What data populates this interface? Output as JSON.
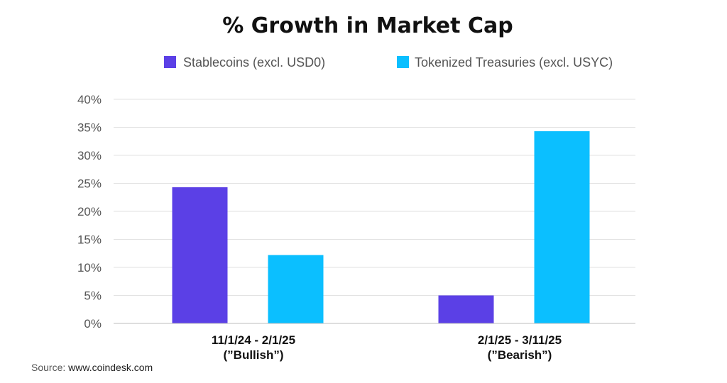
{
  "chart_data": {
    "type": "bar",
    "title": "% Growth in Market Cap",
    "categories": [
      [
        "11/1/24 - 2/1/25",
        "(”Bullish”)"
      ],
      [
        "2/1/25 - 3/11/25",
        "(”Bearish”)"
      ]
    ],
    "series": [
      {
        "name": "Stablecoins (excl. USD0)",
        "color": "#5b40e6",
        "values": [
          24.3,
          5.0
        ]
      },
      {
        "name": "Tokenized Treasuries (excl. USYC)",
        "color": "#0bbfff",
        "values": [
          12.2,
          34.3
        ]
      }
    ],
    "ylim": [
      0,
      40
    ],
    "yticks": [
      0,
      5,
      10,
      15,
      20,
      25,
      30,
      35,
      40
    ],
    "ytick_labels": [
      "0%",
      "5%",
      "10%",
      "15%",
      "20%",
      "25%",
      "30%",
      "35%",
      "40%"
    ],
    "xlabel": "",
    "ylabel": "",
    "grid": true,
    "legend_position": "top-center"
  },
  "source": {
    "label": "Source:",
    "value": "www.coindesk.com"
  }
}
